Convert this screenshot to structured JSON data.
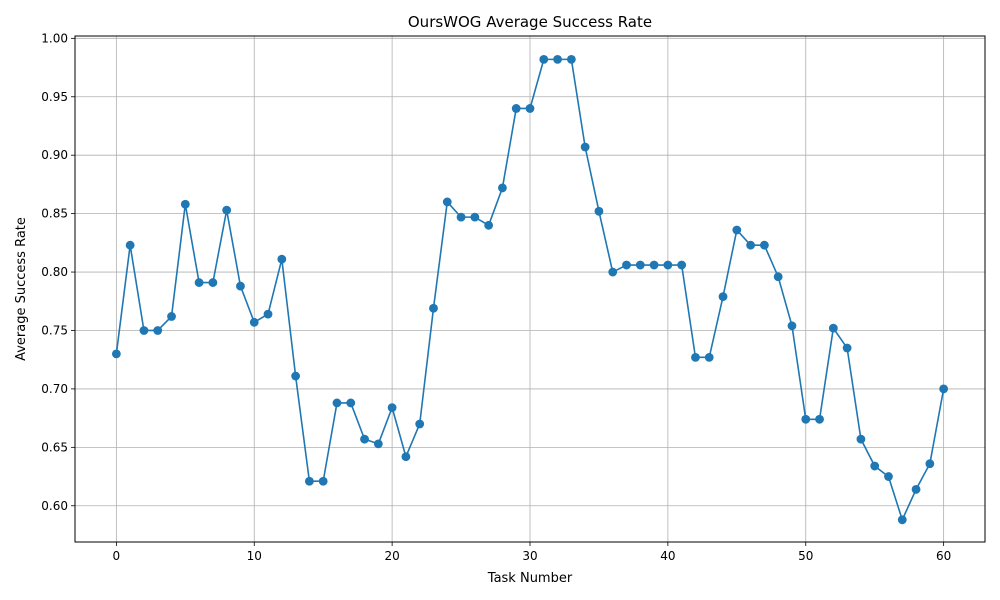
{
  "chart_data": {
    "type": "line",
    "title": "OursWOG Average Success Rate",
    "xlabel": "Task Number",
    "ylabel": "Average Success Rate",
    "xlim": [
      -3,
      63
    ],
    "ylim": [
      0.569,
      1.002
    ],
    "grid": true,
    "marker": "circle",
    "line_color": "#1f77b4",
    "xticks": [
      0,
      10,
      20,
      30,
      40,
      50,
      60
    ],
    "yticks": [
      0.6,
      0.65,
      0.7,
      0.75,
      0.8,
      0.85,
      0.9,
      0.95,
      1.0
    ],
    "yticks_text": [
      "0.60",
      "0.65",
      "0.70",
      "0.75",
      "0.80",
      "0.85",
      "0.90",
      "0.95",
      "1.00"
    ],
    "x": [
      0,
      1,
      2,
      3,
      4,
      5,
      6,
      7,
      8,
      9,
      10,
      11,
      12,
      13,
      14,
      15,
      16,
      17,
      18,
      19,
      20,
      21,
      22,
      23,
      24,
      25,
      26,
      27,
      28,
      29,
      30,
      31,
      32,
      33,
      34,
      35,
      36,
      37,
      38,
      39,
      40,
      41,
      42,
      43,
      44,
      45,
      46,
      47,
      48,
      49,
      50,
      51,
      52,
      53,
      54,
      55,
      56,
      57,
      58,
      59,
      60
    ],
    "y": [
      0.73,
      0.823,
      0.75,
      0.75,
      0.762,
      0.858,
      0.791,
      0.791,
      0.853,
      0.788,
      0.757,
      0.764,
      0.811,
      0.711,
      0.621,
      0.621,
      0.688,
      0.688,
      0.657,
      0.653,
      0.684,
      0.642,
      0.67,
      0.769,
      0.86,
      0.847,
      0.847,
      0.84,
      0.872,
      0.94,
      0.94,
      0.982,
      0.982,
      0.982,
      0.907,
      0.852,
      0.8,
      0.806,
      0.806,
      0.806,
      0.806,
      0.806,
      0.727,
      0.727,
      0.779,
      0.836,
      0.823,
      0.823,
      0.796,
      0.754,
      0.674,
      0.674,
      0.752,
      0.735,
      0.657,
      0.634,
      0.625,
      0.588,
      0.614,
      0.636,
      0.7
    ]
  }
}
